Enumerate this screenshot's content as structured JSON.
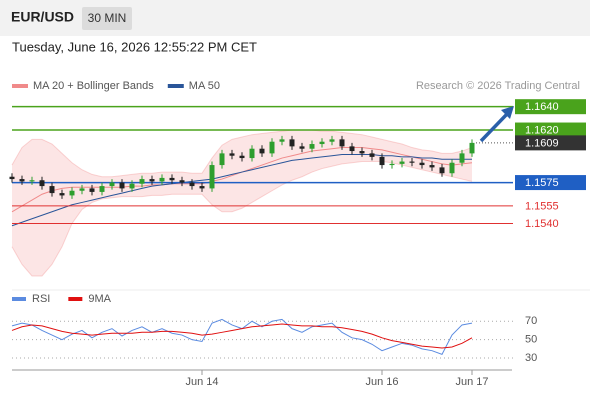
{
  "chart_data": {
    "type": "candlestick",
    "title": "EUR/USD",
    "timeframe": "30 MIN",
    "subtitle": "Tuesday, June 16, 2026 12:55:22 PM CET",
    "source": "Research © 2026 Trading Central",
    "up_color": "#2e9e2e",
    "down_color": "#222222",
    "categories": [
      null,
      null,
      null,
      null,
      null,
      null,
      null,
      null,
      null,
      null,
      null,
      null,
      null,
      null,
      null,
      null,
      null,
      null,
      null,
      "Jun 14",
      null,
      null,
      null,
      null,
      null,
      null,
      null,
      null,
      null,
      null,
      null,
      null,
      null,
      null,
      null,
      null,
      null,
      "Jun 16",
      null,
      null,
      null,
      null,
      null,
      null,
      null,
      null,
      "Jun 17"
    ],
    "open": [
      1.158,
      1.1578,
      1.1576,
      1.1577,
      1.1572,
      1.1566,
      1.1564,
      1.1568,
      1.157,
      1.1567,
      1.1572,
      1.1575,
      1.157,
      1.1574,
      1.1578,
      1.1576,
      1.1579,
      1.1577,
      1.1575,
      1.1572,
      1.157,
      1.159,
      1.16,
      1.1598,
      1.1596,
      1.1604,
      1.16,
      1.161,
      1.1612,
      1.1606,
      1.1604,
      1.1608,
      1.161,
      1.1612,
      1.1606,
      1.1602,
      1.16,
      1.1597,
      1.159,
      1.1591,
      1.1593,
      1.1592,
      1.159,
      1.1588,
      1.1583,
      1.1592,
      1.16
    ],
    "high": [
      1.1583,
      1.1581,
      1.158,
      1.158,
      1.1575,
      1.1569,
      1.1571,
      1.1573,
      1.1573,
      1.1575,
      1.1578,
      1.1578,
      1.1577,
      1.1581,
      1.1581,
      1.1582,
      1.1582,
      1.158,
      1.1578,
      1.1575,
      1.1593,
      1.1603,
      1.1603,
      1.1601,
      1.1607,
      1.1607,
      1.1613,
      1.1615,
      1.1615,
      1.1609,
      1.1611,
      1.1613,
      1.1615,
      1.1615,
      1.1609,
      1.1605,
      1.1603,
      1.16,
      1.1594,
      1.1596,
      1.1596,
      1.1595,
      1.1593,
      1.1591,
      1.1595,
      1.1603,
      1.1612
    ],
    "low": [
      1.1575,
      1.1573,
      1.1573,
      1.1569,
      1.1563,
      1.1561,
      1.1561,
      1.1565,
      1.1564,
      1.1564,
      1.1569,
      1.1567,
      1.1567,
      1.1571,
      1.1573,
      1.1573,
      1.1574,
      1.1572,
      1.1569,
      1.1567,
      1.1567,
      1.1587,
      1.1595,
      1.1593,
      1.1593,
      1.1597,
      1.1597,
      1.1607,
      1.1603,
      1.1601,
      1.1601,
      1.1605,
      1.1607,
      1.1603,
      1.1599,
      1.1597,
      1.1594,
      1.1587,
      1.1587,
      1.1588,
      1.1589,
      1.1587,
      1.1585,
      1.158,
      1.158,
      1.1589,
      1.1597
    ],
    "close": [
      1.1578,
      1.1576,
      1.1577,
      1.1572,
      1.1566,
      1.1564,
      1.1568,
      1.157,
      1.1567,
      1.1572,
      1.1575,
      1.157,
      1.1574,
      1.1578,
      1.1576,
      1.1579,
      1.1577,
      1.1575,
      1.1572,
      1.157,
      1.159,
      1.16,
      1.1598,
      1.1596,
      1.1604,
      1.16,
      1.161,
      1.1612,
      1.1606,
      1.1604,
      1.1608,
      1.161,
      1.1612,
      1.1606,
      1.1602,
      1.16,
      1.1597,
      1.159,
      1.1591,
      1.1593,
      1.1592,
      1.159,
      1.1588,
      1.1583,
      1.1592,
      1.16,
      1.1609
    ],
    "overlays": [
      {
        "name": "MA 20 + Bollinger Bands",
        "color": "#f08a8a",
        "values": [
          1.155,
          1.1555,
          1.156,
          1.1565,
          1.1568,
          1.157,
          1.1571,
          1.1571,
          1.1571,
          1.1571,
          1.1571,
          1.1571,
          1.1572,
          1.1572,
          1.1573,
          1.1573,
          1.1574,
          1.1574,
          1.1574,
          1.1574,
          1.1576,
          1.1578,
          1.1581,
          1.1584,
          1.1587,
          1.159,
          1.1593,
          1.1596,
          1.1598,
          1.16,
          1.1602,
          1.1603,
          1.1604,
          1.1605,
          1.1605,
          1.1605,
          1.1604,
          1.1603,
          1.1601,
          1.1599,
          1.1597,
          1.1595,
          1.1593,
          1.1591,
          1.159,
          1.1591,
          1.1592
        ],
        "upper": [
          1.159,
          1.1605,
          1.1612,
          1.1612,
          1.1608,
          1.16,
          1.1592,
          1.1586,
          1.1582,
          1.158,
          1.158,
          1.1581,
          1.1582,
          1.1583,
          1.1583,
          1.1584,
          1.1584,
          1.1584,
          1.1583,
          1.1583,
          1.1596,
          1.1607,
          1.1612,
          1.1614,
          1.1616,
          1.1617,
          1.1618,
          1.1619,
          1.162,
          1.162,
          1.162,
          1.1619,
          1.1619,
          1.1618,
          1.1617,
          1.1616,
          1.1614,
          1.1612,
          1.161,
          1.1608,
          1.1605,
          1.1603,
          1.1602,
          1.16,
          1.16,
          1.1602,
          1.1605
        ],
        "lower": [
          1.152,
          1.1505,
          1.1495,
          1.1495,
          1.1505,
          1.152,
          1.154,
          1.1552,
          1.1558,
          1.1561,
          1.1562,
          1.1563,
          1.1563,
          1.1563,
          1.1564,
          1.1564,
          1.1565,
          1.1565,
          1.1565,
          1.1565,
          1.1556,
          1.155,
          1.155,
          1.1553,
          1.1558,
          1.1563,
          1.1568,
          1.1573,
          1.1577,
          1.158,
          1.1584,
          1.1587,
          1.1589,
          1.1591,
          1.1592,
          1.1593,
          1.1593,
          1.1593,
          1.1592,
          1.159,
          1.1588,
          1.1586,
          1.1584,
          1.1582,
          1.158,
          1.1578,
          1.1576
        ]
      },
      {
        "name": "MA 50",
        "color": "#2a5599",
        "values": [
          1.1538,
          1.1541,
          1.1544,
          1.1547,
          1.155,
          1.1553,
          1.1556,
          1.1558,
          1.156,
          1.1562,
          1.1564,
          1.1566,
          1.1568,
          1.157,
          1.1572,
          1.1573,
          1.1574,
          1.1575,
          1.1576,
          1.1577,
          1.1578,
          1.158,
          1.1582,
          1.1584,
          1.1586,
          1.1588,
          1.159,
          1.1592,
          1.1594,
          1.1595,
          1.1596,
          1.1597,
          1.1598,
          1.1599,
          1.1599,
          1.1599,
          1.1599,
          1.1598,
          1.1598,
          1.1597,
          1.1597,
          1.1596,
          1.1596,
          1.1595,
          1.1595,
          1.1595,
          1.1595
        ]
      }
    ],
    "levels": [
      {
        "value": 1.164,
        "label": "1.1640",
        "color": "#4aa31c",
        "boxed": true
      },
      {
        "value": 1.162,
        "label": "1.1620",
        "color": "#4aa31c",
        "boxed": true
      },
      {
        "value": 1.1609,
        "label": "1.1609",
        "color": "#333333",
        "boxed": true,
        "current": true
      },
      {
        "value": 1.1575,
        "label": "1.1575",
        "color": "#1f5fc4",
        "boxed": true
      },
      {
        "value": 1.1555,
        "label": "1.1555",
        "color": "#e03030",
        "boxed": false
      },
      {
        "value": 1.154,
        "label": "1.1540",
        "color": "#e03030",
        "boxed": false
      }
    ],
    "ylim": [
      1.1483,
      1.165
    ],
    "rsi": {
      "series": [
        {
          "name": "RSI",
          "color": "#5b8be0",
          "values": [
            65,
            68,
            66,
            60,
            55,
            50,
            56,
            60,
            52,
            58,
            62,
            54,
            60,
            64,
            58,
            62,
            57,
            55,
            50,
            48,
            68,
            72,
            66,
            62,
            70,
            64,
            70,
            72,
            62,
            58,
            64,
            66,
            68,
            58,
            52,
            50,
            45,
            38,
            42,
            46,
            44,
            40,
            38,
            34,
            55,
            66,
            68
          ]
        },
        {
          "name": "9MA",
          "color": "#e01010",
          "values": [
            60,
            64,
            66,
            65,
            62,
            59,
            57,
            56,
            55,
            56,
            57,
            57,
            57,
            58,
            58,
            59,
            59,
            58,
            57,
            55,
            56,
            58,
            60,
            62,
            64,
            65,
            66,
            67,
            66,
            65,
            65,
            64,
            64,
            63,
            61,
            59,
            56,
            52,
            49,
            47,
            45,
            43,
            42,
            41,
            42,
            46,
            52
          ]
        }
      ],
      "ylim": [
        17,
        79
      ],
      "yticks": [
        70,
        50,
        30
      ]
    }
  }
}
